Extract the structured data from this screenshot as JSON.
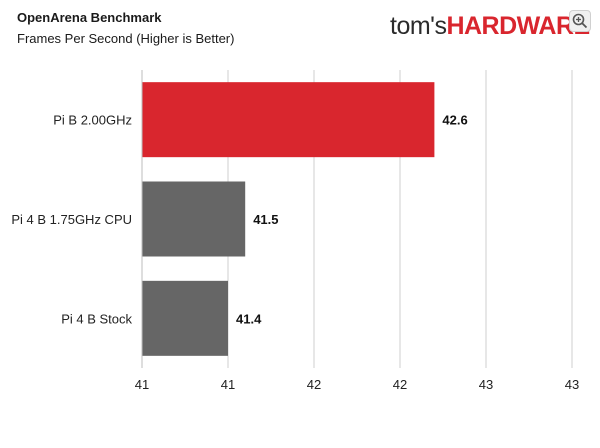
{
  "header": {
    "title": "OpenArena Benchmark",
    "subtitle": "Frames Per Second (Higher is Better)"
  },
  "logo": {
    "prefix": "tom's",
    "brand": "HARDWARE"
  },
  "zoom_icon": "zoom-in-icon",
  "colors": {
    "highlight": "#d9262e",
    "bar": "#666666",
    "grid": "#cfcfcf"
  },
  "chart_data": {
    "type": "bar",
    "orientation": "horizontal",
    "title": "OpenArena Benchmark",
    "subtitle": "Frames Per Second (Higher is Better)",
    "categories": [
      "Pi B 2.00GHz",
      "Pi 4 B 1.75GHz CPU",
      "Pi 4 B Stock"
    ],
    "values": [
      42.6,
      41.5,
      41.4
    ],
    "value_labels": [
      "42.6",
      "41.5",
      "41.4"
    ],
    "highlight_index": 0,
    "xlim": [
      40.9,
      43.4
    ],
    "tick_values": [
      40.9,
      41.4,
      41.9,
      42.4,
      42.9,
      43.4
    ],
    "tick_labels": [
      "41",
      "41",
      "42",
      "42",
      "43",
      "43"
    ],
    "grid": true,
    "xlabel": "",
    "ylabel": ""
  }
}
